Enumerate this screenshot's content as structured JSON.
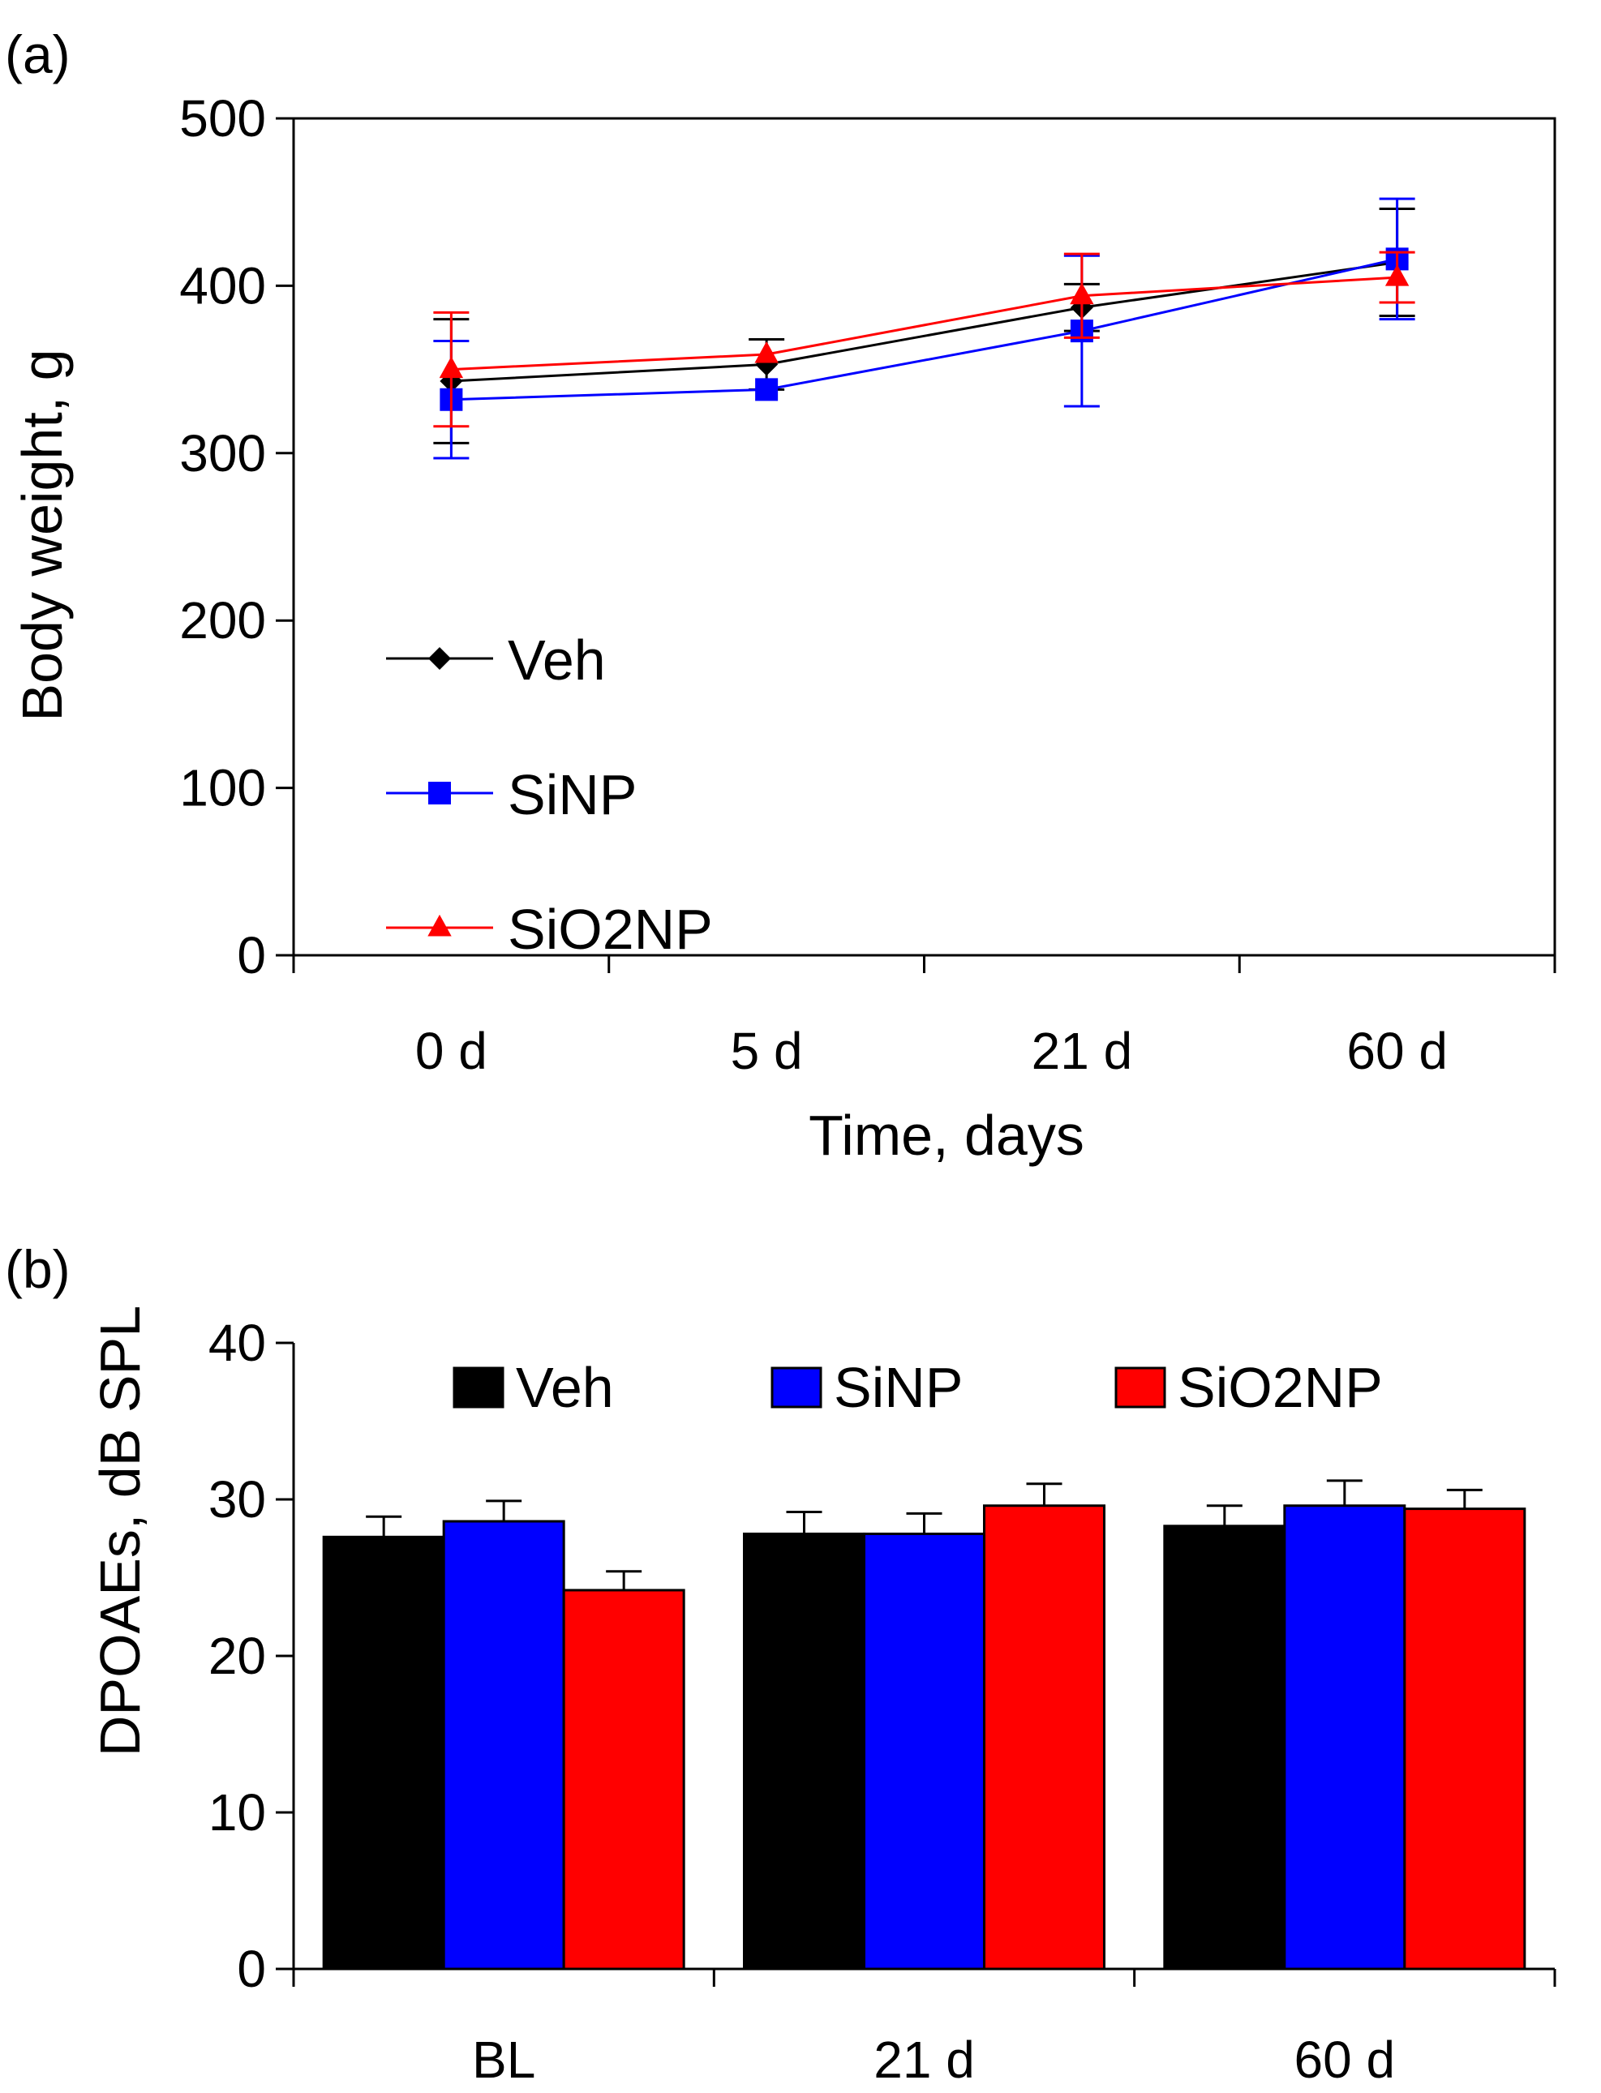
{
  "chart_data": [
    {
      "panel_label": "(a)",
      "type": "line",
      "categories": [
        "0 d",
        "5 d",
        "21 d",
        "60 d"
      ],
      "xlabel": "Time, days",
      "ylabel": "Body weight, g",
      "ylim": [
        0,
        500
      ],
      "yticks": [
        "0",
        "100",
        "200",
        "300",
        "400",
        "500"
      ],
      "legend_position": "bottom-left",
      "series": [
        {
          "name": "Veh",
          "color": "#000000",
          "marker": "diamond",
          "values": [
            343,
            353,
            387,
            414
          ],
          "errors": [
            37,
            15,
            14,
            32
          ]
        },
        {
          "name": "SiNP",
          "color": "#0000ff",
          "marker": "square",
          "values": [
            332,
            338,
            373,
            416
          ],
          "errors": [
            35,
            0,
            45,
            36
          ]
        },
        {
          "name": "SiO2NP",
          "color": "#ff0000",
          "marker": "triangle",
          "values": [
            350,
            359,
            394,
            405
          ],
          "errors": [
            34,
            0,
            25,
            15
          ]
        }
      ]
    },
    {
      "panel_label": "(b)",
      "type": "bar",
      "categories": [
        "BL",
        "21 d",
        "60 d"
      ],
      "xlabel": "",
      "ylabel": "DPOAEs, dB SPL",
      "ylim": [
        0,
        40
      ],
      "yticks": [
        "0",
        "10",
        "20",
        "30",
        "40"
      ],
      "legend_position": "top-center",
      "series": [
        {
          "name": "Veh",
          "color": "#000000",
          "values": [
            27.6,
            27.8,
            28.3
          ],
          "errors": [
            1.3,
            1.4,
            1.3
          ]
        },
        {
          "name": "SiNP",
          "color": "#0000ff",
          "values": [
            28.6,
            27.8,
            29.6
          ],
          "errors": [
            1.3,
            1.3,
            1.6
          ]
        },
        {
          "name": "SiO2NP",
          "color": "#ff0000",
          "values": [
            24.2,
            29.6,
            29.4
          ],
          "errors": [
            1.2,
            1.4,
            1.2
          ]
        }
      ]
    }
  ]
}
